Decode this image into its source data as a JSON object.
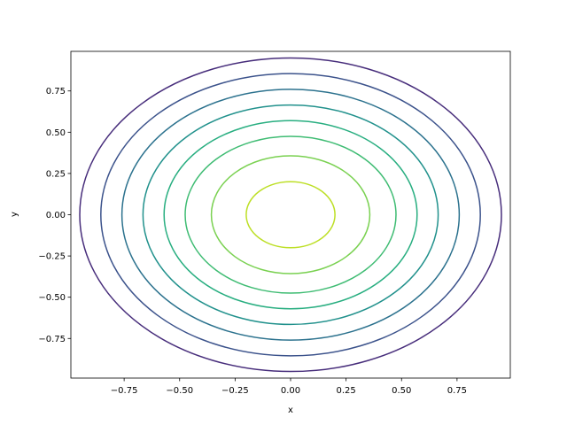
{
  "chart_data": {
    "type": "contour",
    "x_label": "x",
    "y_label": "y",
    "xlim": [
      -0.99,
      0.99
    ],
    "ylim": [
      -0.99,
      0.99
    ],
    "xticks": [
      {
        "value": -0.75,
        "label": "−0.75"
      },
      {
        "value": -0.5,
        "label": "−0.50"
      },
      {
        "value": -0.25,
        "label": "−0.25"
      },
      {
        "value": 0,
        "label": "0.00"
      },
      {
        "value": 0.25,
        "label": "0.25"
      },
      {
        "value": 0.5,
        "label": "0.50"
      },
      {
        "value": 0.75,
        "label": "0.75"
      }
    ],
    "yticks": [
      {
        "value": -0.75,
        "label": "−0.75"
      },
      {
        "value": -0.5,
        "label": "−0.50"
      },
      {
        "value": -0.25,
        "label": "−0.25"
      },
      {
        "value": 0,
        "label": "0.00"
      },
      {
        "value": 0.25,
        "label": "0.25"
      },
      {
        "value": 0.5,
        "label": "0.50"
      },
      {
        "value": 0.75,
        "label": "0.75"
      }
    ],
    "radii": [
      0.95,
      0.855,
      0.76,
      0.665,
      0.57,
      0.475,
      0.357,
      0.2
    ],
    "colors": [
      "#472d7b",
      "#3b528b",
      "#2c728e",
      "#21918c",
      "#28ae80",
      "#3fbc73",
      "#7ad151",
      "#bddf26"
    ]
  }
}
